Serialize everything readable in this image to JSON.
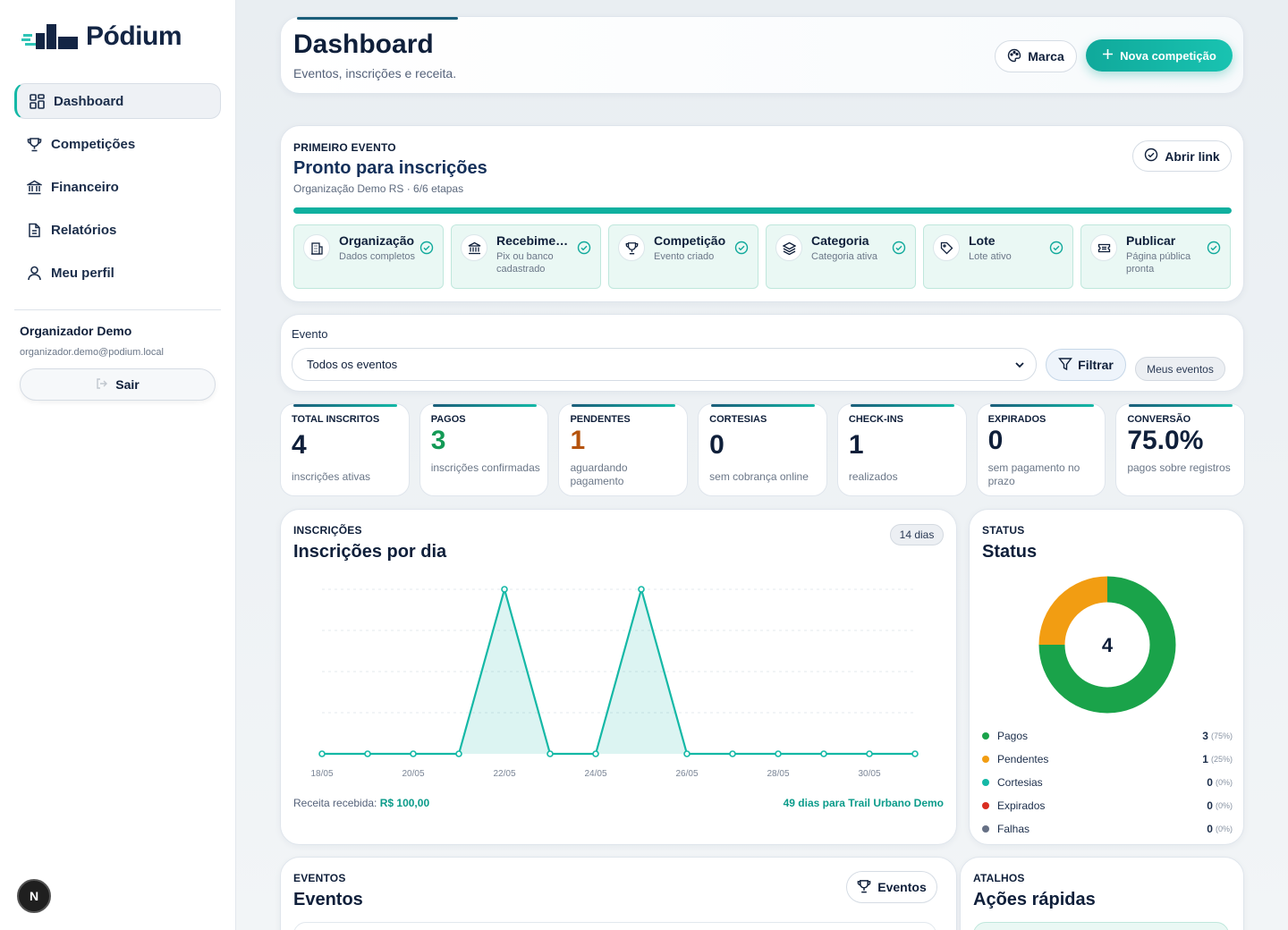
{
  "brand": {
    "name": "Pódium"
  },
  "sidebar": {
    "items": [
      {
        "label": "Dashboard",
        "icon": "dashboard-icon"
      },
      {
        "label": "Competições",
        "icon": "trophy-icon"
      },
      {
        "label": "Financeiro",
        "icon": "bank-icon"
      },
      {
        "label": "Relatórios",
        "icon": "report-icon"
      },
      {
        "label": "Meu perfil",
        "icon": "user-icon"
      }
    ],
    "user_name": "Organizador Demo",
    "user_email": "organizador.demo@podium.local",
    "logout_label": "Sair",
    "badge": "N"
  },
  "header": {
    "title": "Dashboard",
    "subtitle": "Eventos, inscrições e receita.",
    "marca_label": "Marca",
    "nova_label": "Nova competição"
  },
  "first_event": {
    "label": "PRIMEIRO EVENTO",
    "title": "Pronto para inscrições",
    "subtitle": "Organização Demo RS · 6/6 etapas",
    "open_link_label": "Abrir link",
    "progress": 1.0,
    "steps": [
      {
        "title": "Organização",
        "desc": "Dados completos"
      },
      {
        "title": "Recebimento",
        "desc": "Pix ou banco cadastrado"
      },
      {
        "title": "Competição",
        "desc": "Evento criado"
      },
      {
        "title": "Categoria",
        "desc": "Categoria ativa"
      },
      {
        "title": "Lote",
        "desc": "Lote ativo"
      },
      {
        "title": "Publicar",
        "desc": "Página pública pronta"
      }
    ]
  },
  "filter": {
    "label": "Evento",
    "selected": "Todos os eventos",
    "filter_label": "Filtrar",
    "my_events_label": "Meus eventos"
  },
  "kpis": [
    {
      "label": "TOTAL INSCRITOS",
      "value": "4",
      "desc": "inscrições ativas",
      "color": "#0f1f3a"
    },
    {
      "label": "PAGOS",
      "value": "3",
      "desc": "inscrições confirmadas",
      "color": "#139a56"
    },
    {
      "label": "PENDENTES",
      "value": "1",
      "desc": "aguardando pagamento",
      "color": "#b5530c"
    },
    {
      "label": "CORTESIAS",
      "value": "0",
      "desc": "sem cobrança online",
      "color": "#0f1f3a"
    },
    {
      "label": "CHECK-INS",
      "value": "1",
      "desc": "realizados",
      "color": "#0f1f3a"
    },
    {
      "label": "EXPIRADOS",
      "value": "0",
      "desc": "sem pagamento no prazo",
      "color": "#0f1f3a"
    },
    {
      "label": "CONVERSÃO",
      "value": "75.0%",
      "desc": "pagos sobre registros",
      "color": "#0f1f3a"
    }
  ],
  "inscricoes": {
    "label": "INSCRIÇÕES",
    "title": "Inscrições por dia",
    "chip": "14 dias",
    "revenue_label": "Receita recebida:",
    "revenue_value": "R$ 100,00",
    "days_left": "49 dias para Trail Urbano Demo"
  },
  "chart_data": {
    "type": "area",
    "x": [
      "18/05",
      "19/05",
      "20/05",
      "21/05",
      "22/05",
      "23/05",
      "24/05",
      "25/05",
      "26/05",
      "27/05",
      "28/05",
      "29/05",
      "30/05",
      "31/05"
    ],
    "tick_labels": [
      "18/05",
      "20/05",
      "22/05",
      "24/05",
      "26/05",
      "28/05",
      "30/05"
    ],
    "values": [
      0,
      0,
      0,
      0,
      2,
      0,
      0,
      2,
      0,
      0,
      0,
      0,
      0,
      0
    ],
    "ylim": [
      0,
      2
    ],
    "grid": true,
    "color": "#14b8a6"
  },
  "status": {
    "label": "STATUS",
    "title": "Status",
    "total": "4",
    "items": [
      {
        "name": "Pagos",
        "value": 3,
        "pct": "(75%)",
        "color": "#1aa34a"
      },
      {
        "name": "Pendentes",
        "value": 1,
        "pct": "(25%)",
        "color": "#f29d12"
      },
      {
        "name": "Cortesias",
        "value": 0,
        "pct": "(0%)",
        "color": "#14b8a6"
      },
      {
        "name": "Expirados",
        "value": 0,
        "pct": "(0%)",
        "color": "#d92d20"
      },
      {
        "name": "Falhas",
        "value": 0,
        "pct": "(0%)",
        "color": "#667085"
      }
    ]
  },
  "eventos": {
    "label": "EVENTOS",
    "title": "Eventos",
    "button_label": "Eventos"
  },
  "atalhos": {
    "label": "ATALHOS",
    "title": "Ações rápidas"
  }
}
